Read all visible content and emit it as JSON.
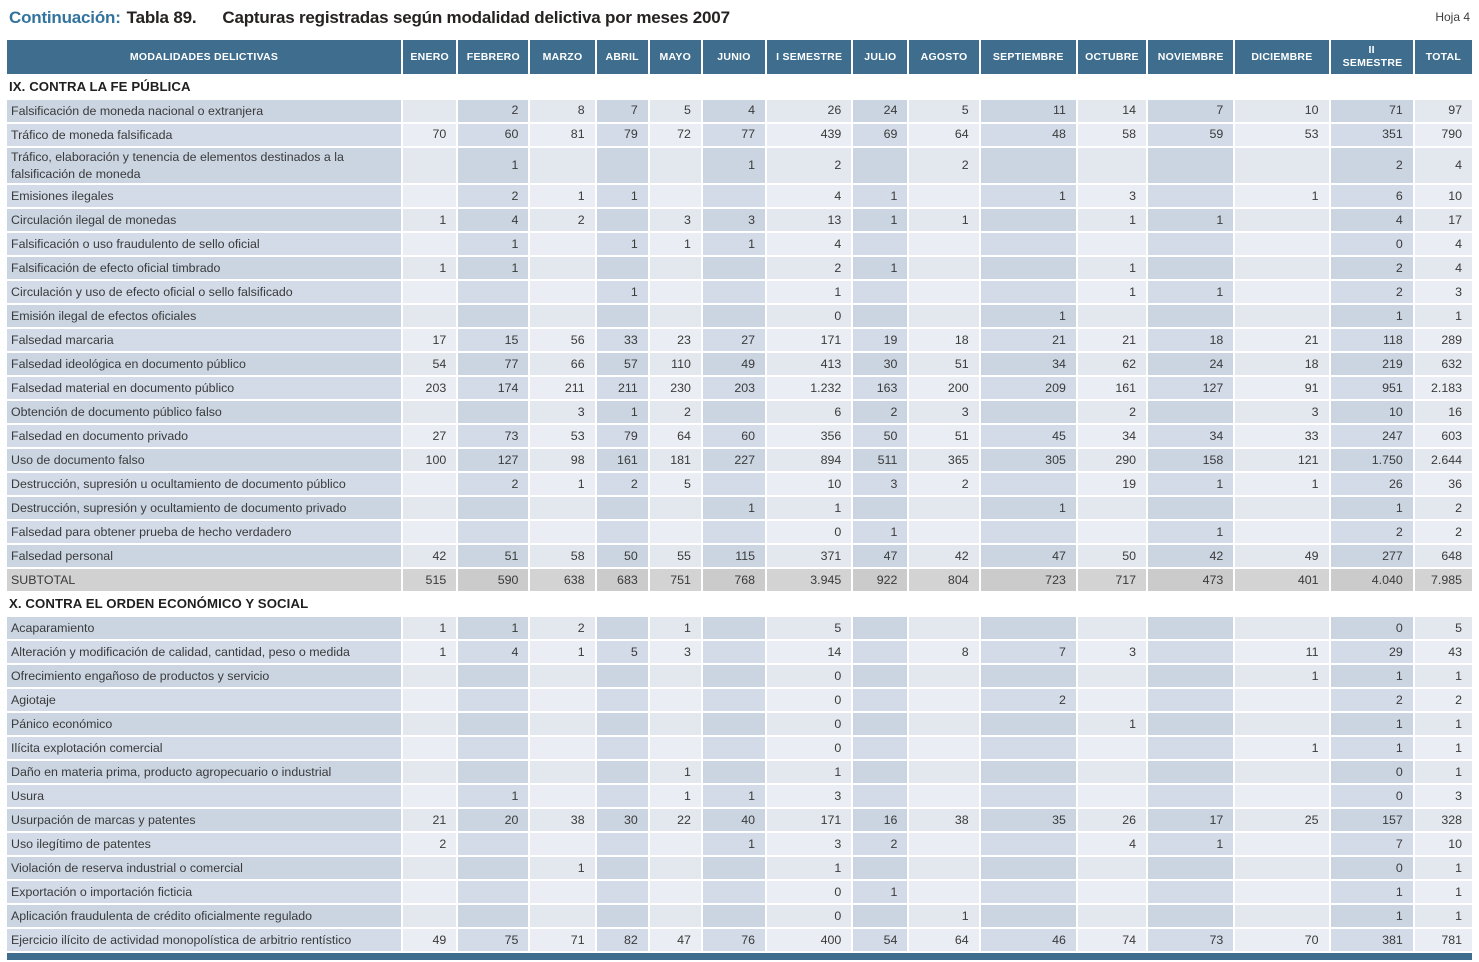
{
  "header": {
    "continuation": "Continuación:",
    "table_label": "Tabla 89.",
    "title": "Capturas registradas según modalidad delictiva por meses 2007",
    "sheet": "Hoja 4"
  },
  "colors": {
    "header_bg": "#3e6d8e",
    "title_accent": "#33749e",
    "col_light": "#e3e8ef",
    "col_dark": "#cbd5e2",
    "subtotal_bg": "#d1d1d1"
  },
  "table": {
    "columns": [
      "MODALIDADES DELICTIVAS",
      "ENERO",
      "FEBRERO",
      "MARZO",
      "ABRIL",
      "MAYO",
      "JUNIO",
      "I SEMESTRE",
      "JULIO",
      "AGOSTO",
      "SEPTIEMBRE",
      "OCTUBRE",
      "NOVIEMBRE",
      "DICIEMBRE",
      "II SEMESTRE",
      "TOTAL"
    ],
    "subtotal_label": "SUBTOTAL",
    "sections": [
      {
        "title": "IX. CONTRA LA FE PÚBLICA",
        "rows": [
          {
            "label": "Falsificación de moneda nacional o extranjera",
            "values": [
              "",
              "2",
              "8",
              "7",
              "5",
              "4",
              "26",
              "24",
              "5",
              "11",
              "14",
              "7",
              "10",
              "71",
              "97"
            ]
          },
          {
            "label": "Tráfico de moneda falsificada",
            "values": [
              "70",
              "60",
              "81",
              "79",
              "72",
              "77",
              "439",
              "69",
              "64",
              "48",
              "58",
              "59",
              "53",
              "351",
              "790"
            ]
          },
          {
            "label": "Tráfico, elaboración y tenencia de elementos destinados a la falsificación de moneda",
            "values": [
              "",
              "1",
              "",
              "",
              "",
              "1",
              "2",
              "",
              "2",
              "",
              "",
              "",
              "",
              "2",
              "4"
            ]
          },
          {
            "label": "Emisiones ilegales",
            "values": [
              "",
              "2",
              "1",
              "1",
              "",
              "",
              "4",
              "1",
              "",
              "1",
              "3",
              "",
              "1",
              "6",
              "10"
            ]
          },
          {
            "label": "Circulación ilegal de monedas",
            "values": [
              "1",
              "4",
              "2",
              "",
              "3",
              "3",
              "13",
              "1",
              "1",
              "",
              "1",
              "1",
              "",
              "4",
              "17"
            ]
          },
          {
            "label": "Falsificación o uso fraudulento de sello oficial",
            "values": [
              "",
              "1",
              "",
              "1",
              "1",
              "1",
              "4",
              "",
              "",
              "",
              "",
              "",
              "",
              "0",
              "4"
            ]
          },
          {
            "label": "Falsificación de efecto oficial timbrado",
            "values": [
              "1",
              "1",
              "",
              "",
              "",
              "",
              "2",
              "1",
              "",
              "",
              "1",
              "",
              "",
              "2",
              "4"
            ]
          },
          {
            "label": "Circulación y uso de efecto oficial o sello falsificado",
            "values": [
              "",
              "",
              "",
              "1",
              "",
              "",
              "1",
              "",
              "",
              "",
              "1",
              "1",
              "",
              "2",
              "3"
            ]
          },
          {
            "label": "Emisión ilegal de efectos oficiales",
            "values": [
              "",
              "",
              "",
              "",
              "",
              "",
              "0",
              "",
              "",
              "1",
              "",
              "",
              "",
              "1",
              "1"
            ]
          },
          {
            "label": "Falsedad marcaria",
            "values": [
              "17",
              "15",
              "56",
              "33",
              "23",
              "27",
              "171",
              "19",
              "18",
              "21",
              "21",
              "18",
              "21",
              "118",
              "289"
            ]
          },
          {
            "label": "Falsedad ideológica en documento público",
            "values": [
              "54",
              "77",
              "66",
              "57",
              "110",
              "49",
              "413",
              "30",
              "51",
              "34",
              "62",
              "24",
              "18",
              "219",
              "632"
            ]
          },
          {
            "label": "Falsedad material en documento público",
            "values": [
              "203",
              "174",
              "211",
              "211",
              "230",
              "203",
              "1.232",
              "163",
              "200",
              "209",
              "161",
              "127",
              "91",
              "951",
              "2.183"
            ]
          },
          {
            "label": "Obtención de documento público falso",
            "values": [
              "",
              "",
              "3",
              "1",
              "2",
              "",
              "6",
              "2",
              "3",
              "",
              "2",
              "",
              "3",
              "10",
              "16"
            ]
          },
          {
            "label": "Falsedad en documento privado",
            "values": [
              "27",
              "73",
              "53",
              "79",
              "64",
              "60",
              "356",
              "50",
              "51",
              "45",
              "34",
              "34",
              "33",
              "247",
              "603"
            ]
          },
          {
            "label": "Uso de documento falso",
            "values": [
              "100",
              "127",
              "98",
              "161",
              "181",
              "227",
              "894",
              "511",
              "365",
              "305",
              "290",
              "158",
              "121",
              "1.750",
              "2.644"
            ]
          },
          {
            "label": "Destrucción, supresión u ocultamiento de documento público",
            "values": [
              "",
              "2",
              "1",
              "2",
              "5",
              "",
              "10",
              "3",
              "2",
              "",
              "19",
              "1",
              "1",
              "26",
              "36"
            ]
          },
          {
            "label": "Destrucción, supresión y ocultamiento de documento privado",
            "values": [
              "",
              "",
              "",
              "",
              "",
              "1",
              "1",
              "",
              "",
              "1",
              "",
              "",
              "",
              "1",
              "2"
            ]
          },
          {
            "label": "Falsedad para obtener prueba de hecho verdadero",
            "values": [
              "",
              "",
              "",
              "",
              "",
              "",
              "0",
              "1",
              "",
              "",
              "",
              "1",
              "",
              "2",
              "2"
            ]
          },
          {
            "label": "Falsedad personal",
            "values": [
              "42",
              "51",
              "58",
              "50",
              "55",
              "115",
              "371",
              "47",
              "42",
              "47",
              "50",
              "42",
              "49",
              "277",
              "648"
            ]
          }
        ],
        "subtotal": [
          "515",
          "590",
          "638",
          "683",
          "751",
          "768",
          "3.945",
          "922",
          "804",
          "723",
          "717",
          "473",
          "401",
          "4.040",
          "7.985"
        ]
      },
      {
        "title": "X. CONTRA EL ORDEN ECONÓMICO Y SOCIAL",
        "rows": [
          {
            "label": "Acaparamiento",
            "values": [
              "1",
              "1",
              "2",
              "",
              "1",
              "",
              "5",
              "",
              "",
              "",
              "",
              "",
              "",
              "0",
              "5"
            ]
          },
          {
            "label": "Alteración y modificación de calidad, cantidad, peso o medida",
            "values": [
              "1",
              "4",
              "1",
              "5",
              "3",
              "",
              "14",
              "",
              "8",
              "7",
              "3",
              "",
              "11",
              "29",
              "43"
            ]
          },
          {
            "label": "Ofrecimiento engañoso de productos y servicio",
            "values": [
              "",
              "",
              "",
              "",
              "",
              "",
              "0",
              "",
              "",
              "",
              "",
              "",
              "1",
              "1",
              "1"
            ]
          },
          {
            "label": "Agiotaje",
            "values": [
              "",
              "",
              "",
              "",
              "",
              "",
              "0",
              "",
              "",
              "2",
              "",
              "",
              "",
              "2",
              "2"
            ]
          },
          {
            "label": "Pánico económico",
            "values": [
              "",
              "",
              "",
              "",
              "",
              "",
              "0",
              "",
              "",
              "",
              "1",
              "",
              "",
              "1",
              "1"
            ]
          },
          {
            "label": "Ilícita explotación comercial",
            "values": [
              "",
              "",
              "",
              "",
              "",
              "",
              "0",
              "",
              "",
              "",
              "",
              "",
              "1",
              "1",
              "1"
            ]
          },
          {
            "label": "Daño en materia prima, producto agropecuario o industrial",
            "values": [
              "",
              "",
              "",
              "",
              "1",
              "",
              "1",
              "",
              "",
              "",
              "",
              "",
              "",
              "0",
              "1"
            ]
          },
          {
            "label": "Usura",
            "values": [
              "",
              "1",
              "",
              "",
              "1",
              "1",
              "3",
              "",
              "",
              "",
              "",
              "",
              "",
              "0",
              "3"
            ]
          },
          {
            "label": "Usurpación de marcas y patentes",
            "values": [
              "21",
              "20",
              "38",
              "30",
              "22",
              "40",
              "171",
              "16",
              "38",
              "35",
              "26",
              "17",
              "25",
              "157",
              "328"
            ]
          },
          {
            "label": "Uso ilegítimo de patentes",
            "values": [
              "2",
              "",
              "",
              "",
              "",
              "1",
              "3",
              "2",
              "",
              "",
              "4",
              "1",
              "",
              "7",
              "10"
            ]
          },
          {
            "label": "Violación de reserva industrial o comercial",
            "values": [
              "",
              "",
              "1",
              "",
              "",
              "",
              "1",
              "",
              "",
              "",
              "",
              "",
              "",
              "0",
              "1"
            ]
          },
          {
            "label": "Exportación o importación ficticia",
            "values": [
              "",
              "",
              "",
              "",
              "",
              "",
              "0",
              "1",
              "",
              "",
              "",
              "",
              "",
              "1",
              "1"
            ]
          },
          {
            "label": "Aplicación fraudulenta de crédito oficialmente regulado",
            "values": [
              "",
              "",
              "",
              "",
              "",
              "",
              "0",
              "",
              "1",
              "",
              "",
              "",
              "",
              "1",
              "1"
            ]
          },
          {
            "label": "Ejercicio ilícito de actividad monopolística de arbitrio rentístico",
            "values": [
              "49",
              "75",
              "71",
              "82",
              "47",
              "76",
              "400",
              "54",
              "64",
              "46",
              "74",
              "73",
              "70",
              "381",
              "781"
            ]
          }
        ]
      }
    ]
  }
}
